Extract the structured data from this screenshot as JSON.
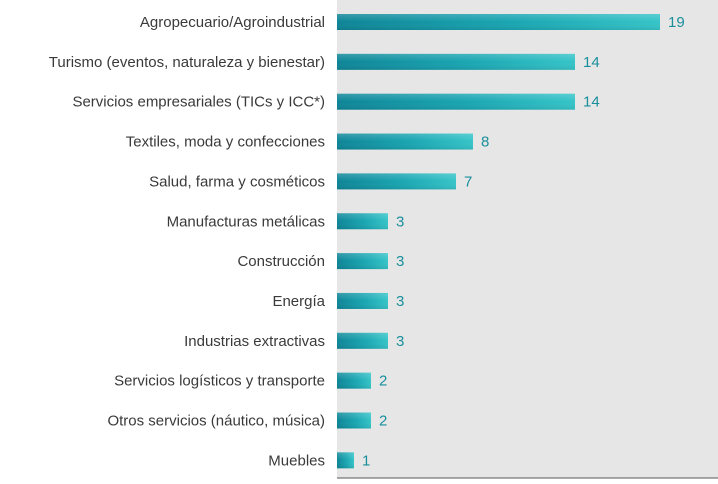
{
  "chart_data": {
    "type": "bar",
    "orientation": "horizontal",
    "categories": [
      "Agropecuario/Agroindustrial",
      "Turismo (eventos, naturaleza y bienestar)",
      "Servicios empresariales (TICs y ICC*)",
      "Textiles, moda y confecciones",
      "Salud, farma y cosméticos",
      "Manufacturas metálicas",
      "Construcción",
      "Energía",
      "Industrias extractivas",
      "Servicios logísticos y transporte",
      "Otros servicios (náutico, música)",
      "Muebles"
    ],
    "values": [
      19,
      14,
      14,
      8,
      7,
      3,
      3,
      3,
      3,
      2,
      2,
      1
    ],
    "xlim": [
      0,
      19
    ],
    "grid": false,
    "colors": {
      "bar_dark": "#0e8597",
      "bar_light": "#2fc0c6",
      "value_text": "#1a8f9c",
      "plot_background": "#e6e6e6",
      "axis": "#555555"
    }
  }
}
